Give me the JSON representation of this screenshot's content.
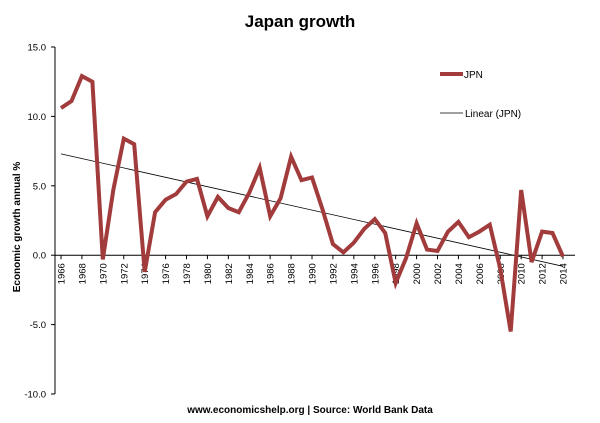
{
  "chart_data": {
    "type": "line",
    "title": "Japan growth",
    "ylabel": "Economic growth annual %",
    "source_note": "www.economicshelp.org | Source: World Bank Data",
    "ylim": [
      -10.0,
      15.0
    ],
    "y_ticks": [
      "15.0",
      "10.0",
      "5.0",
      "0.0",
      "-5.0",
      "-10.0"
    ],
    "x_ticks": [
      "1966",
      "1968",
      "1970",
      "1972",
      "1974",
      "1976",
      "1978",
      "1980",
      "1982",
      "1984",
      "1986",
      "1988",
      "1990",
      "1992",
      "1994",
      "1996",
      "1998",
      "2000",
      "2002",
      "2004",
      "2006",
      "2008",
      "2010",
      "2012",
      "2014"
    ],
    "x": [
      1966,
      1967,
      1968,
      1969,
      1970,
      1971,
      1972,
      1973,
      1974,
      1975,
      1976,
      1977,
      1978,
      1979,
      1980,
      1981,
      1982,
      1983,
      1984,
      1985,
      1986,
      1987,
      1988,
      1989,
      1990,
      1991,
      1992,
      1993,
      1994,
      1995,
      1996,
      1997,
      1998,
      1999,
      2000,
      2001,
      2002,
      2003,
      2004,
      2005,
      2006,
      2007,
      2008,
      2009,
      2010,
      2011,
      2012,
      2013,
      2014
    ],
    "series": [
      {
        "name": "JPN",
        "color": "#a23b3b",
        "values": [
          10.6,
          11.1,
          12.9,
          12.5,
          -0.3,
          4.7,
          8.4,
          8.0,
          -1.2,
          3.1,
          4.0,
          4.4,
          5.3,
          5.5,
          2.8,
          4.2,
          3.4,
          3.1,
          4.5,
          6.3,
          2.8,
          4.1,
          7.1,
          5.4,
          5.6,
          3.3,
          0.8,
          0.2,
          0.9,
          1.9,
          2.6,
          1.6,
          -2.0,
          -0.2,
          2.3,
          0.4,
          0.3,
          1.7,
          2.4,
          1.3,
          1.7,
          2.2,
          -1.0,
          -5.5,
          4.7,
          -0.5,
          1.7,
          1.6,
          -0.1
        ]
      }
    ],
    "trendline": {
      "name": "Linear (JPN)",
      "color": "#000000",
      "x": [
        1966,
        2014
      ],
      "values": [
        7.3,
        -0.8
      ]
    },
    "legend_position": "top-right",
    "grid": false
  }
}
